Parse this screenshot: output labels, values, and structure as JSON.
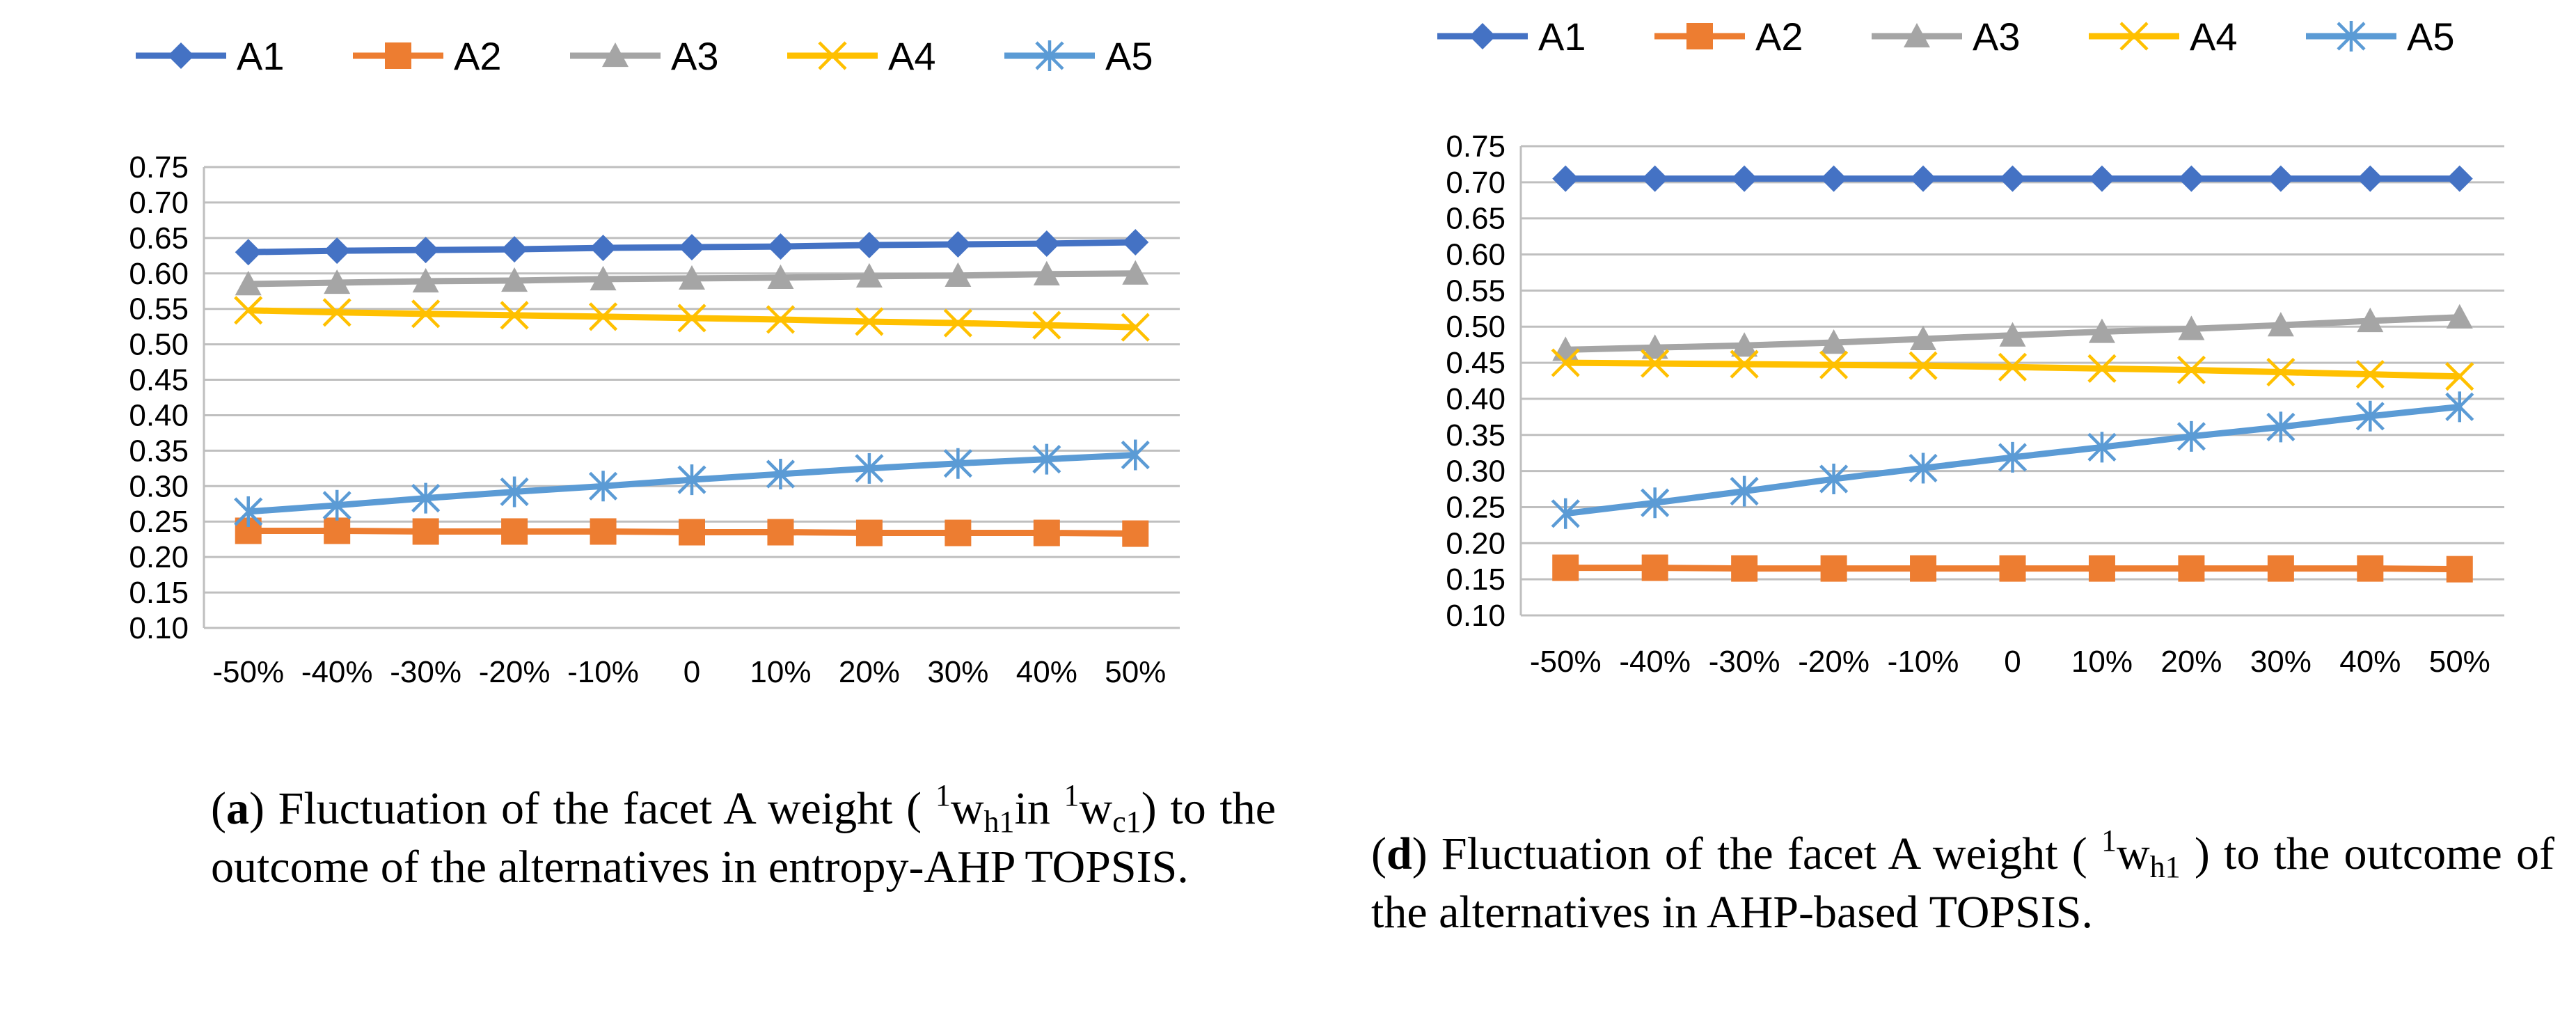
{
  "chart_data": [
    {
      "id": "a",
      "type": "line",
      "categories": [
        "-50%",
        "-40%",
        "-30%",
        "-20%",
        "-10%",
        "0",
        "10%",
        "20%",
        "30%",
        "40%",
        "50%"
      ],
      "ylim": [
        0.1,
        0.75
      ],
      "ystep": 0.05,
      "yticks": [
        "0.10",
        "0.15",
        "0.20",
        "0.25",
        "0.30",
        "0.35",
        "0.40",
        "0.45",
        "0.50",
        "0.55",
        "0.60",
        "0.65",
        "0.70",
        "0.75"
      ],
      "legend_position": "top",
      "grid": true,
      "series": [
        {
          "name": "A1",
          "color": "#4472C4",
          "marker": "diamond",
          "values": [
            0.63,
            0.632,
            0.633,
            0.634,
            0.636,
            0.637,
            0.638,
            0.64,
            0.641,
            0.642,
            0.644
          ]
        },
        {
          "name": "A2",
          "color": "#ED7D31",
          "marker": "square",
          "values": [
            0.237,
            0.237,
            0.236,
            0.236,
            0.236,
            0.235,
            0.235,
            0.234,
            0.234,
            0.234,
            0.233
          ]
        },
        {
          "name": "A3",
          "color": "#A5A5A5",
          "marker": "triangle",
          "values": [
            0.585,
            0.587,
            0.589,
            0.59,
            0.592,
            0.593,
            0.594,
            0.596,
            0.597,
            0.599,
            0.6
          ]
        },
        {
          "name": "A4",
          "color": "#FFC000",
          "marker": "x",
          "values": [
            0.548,
            0.545,
            0.543,
            0.541,
            0.539,
            0.537,
            0.535,
            0.532,
            0.53,
            0.527,
            0.524
          ]
        },
        {
          "name": "A5",
          "color": "#5B9BD5",
          "marker": "star",
          "values": [
            0.264,
            0.273,
            0.283,
            0.292,
            0.3,
            0.309,
            0.317,
            0.325,
            0.332,
            0.338,
            0.344
          ]
        }
      ]
    },
    {
      "id": "d",
      "type": "line",
      "categories": [
        "-50%",
        "-40%",
        "-30%",
        "-20%",
        "-10%",
        "0",
        "10%",
        "20%",
        "30%",
        "40%",
        "50%"
      ],
      "ylim": [
        0.1,
        0.75
      ],
      "ystep": 0.05,
      "yticks": [
        "0.10",
        "0.15",
        "0.20",
        "0.25",
        "0.30",
        "0.35",
        "0.40",
        "0.45",
        "0.50",
        "0.55",
        "0.60",
        "0.65",
        "0.70",
        "0.75"
      ],
      "legend_position": "top",
      "grid": true,
      "series": [
        {
          "name": "A1",
          "color": "#4472C4",
          "marker": "diamond",
          "values": [
            0.705,
            0.705,
            0.705,
            0.705,
            0.705,
            0.705,
            0.705,
            0.705,
            0.705,
            0.705,
            0.705
          ]
        },
        {
          "name": "A2",
          "color": "#ED7D31",
          "marker": "square",
          "values": [
            0.166,
            0.166,
            0.165,
            0.165,
            0.165,
            0.165,
            0.165,
            0.165,
            0.165,
            0.165,
            0.164
          ]
        },
        {
          "name": "A3",
          "color": "#A5A5A5",
          "marker": "triangle",
          "values": [
            0.468,
            0.471,
            0.474,
            0.478,
            0.483,
            0.488,
            0.493,
            0.497,
            0.502,
            0.508,
            0.513
          ]
        },
        {
          "name": "A4",
          "color": "#FFC000",
          "marker": "x",
          "values": [
            0.45,
            0.449,
            0.448,
            0.447,
            0.446,
            0.444,
            0.442,
            0.44,
            0.437,
            0.434,
            0.431
          ]
        },
        {
          "name": "A5",
          "color": "#5B9BD5",
          "marker": "star",
          "values": [
            0.241,
            0.256,
            0.272,
            0.289,
            0.304,
            0.319,
            0.333,
            0.348,
            0.361,
            0.376,
            0.389
          ]
        }
      ]
    }
  ],
  "captions": {
    "a": {
      "label": "a",
      "text_before": "Fluctuation of the facet A weight (",
      "w1_sup": "1",
      "w1_base": "w",
      "w1_sub": "h1",
      "in_text": "in",
      "w2_sup": "1",
      "w2_base": "w",
      "w2_sub": "c1",
      "text_after": ") to the outcome of the alternatives in entropy-AHP TOPSIS."
    },
    "d": {
      "label": "d",
      "text_before": "Fluctuation of the facet A weight (",
      "w1_sup": "1",
      "w1_base": "w",
      "w1_sub": "h1",
      "text_after": ") to the outcome of the alternatives in AHP-based TOPSIS."
    }
  }
}
